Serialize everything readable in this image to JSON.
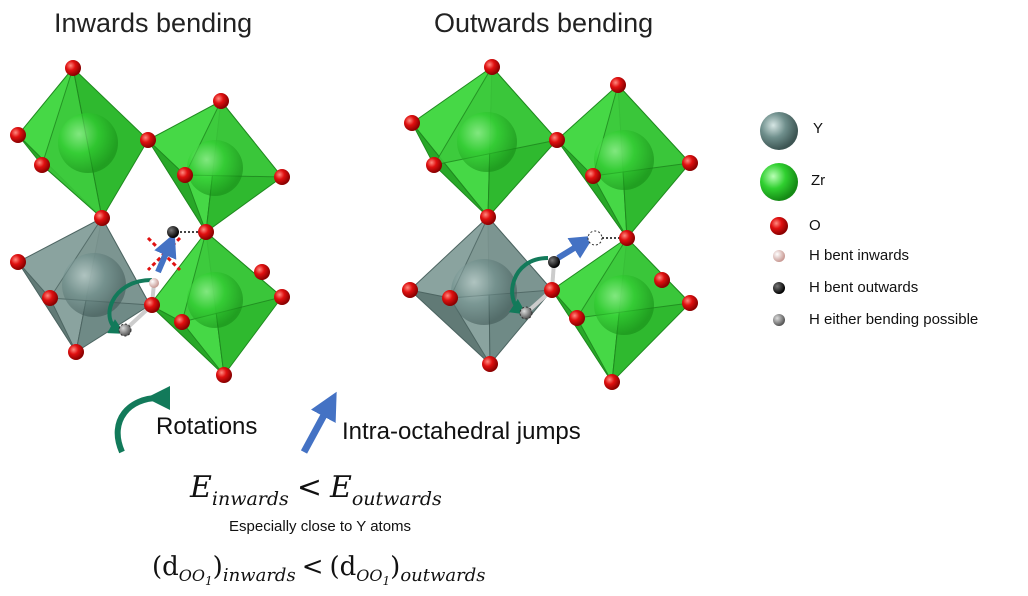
{
  "titles": {
    "left": "Inwards bending",
    "right": "Outwards bending"
  },
  "legend": [
    {
      "label": "Y",
      "icon": "y-atom-icon",
      "color": "#6f8f8c"
    },
    {
      "label": "Zr",
      "icon": "zr-atom-icon",
      "color": "#2ecc2e"
    },
    {
      "label": "O",
      "icon": "o-atom-icon",
      "color": "#e01010"
    },
    {
      "label": "H bent inwards",
      "icon": "h-inwards-icon",
      "color": "#e8c8c4"
    },
    {
      "label": "H bent outwards",
      "icon": "h-outwards-icon",
      "color": "#1a1a1a"
    },
    {
      "label": "H either bending possible",
      "icon": "h-either-icon",
      "color": "#8a8a8a"
    }
  ],
  "mechanisms": {
    "rotation": "Rotations",
    "jump": "Intra-octahedral jumps",
    "rotation_color": "#127a5a",
    "jump_color": "#4472c4"
  },
  "energy": {
    "left": "E",
    "left_sub": "inwards",
    "op": "<",
    "right": "E",
    "right_sub": "outwards",
    "note": "Especially close to Y atoms"
  },
  "distance": {
    "left": "(d",
    "left_sub": "OO",
    "left_subsub": "1",
    "left_close": ")",
    "left_tail": "inwards",
    "op": "<",
    "right": "(d",
    "right_sub": "OO",
    "right_subsub": "1",
    "right_close": ")",
    "right_tail": "outwards"
  },
  "colors": {
    "zr_octa": "#39c93a",
    "y_octa": "#7f9893",
    "oxygen": "#e01010"
  }
}
